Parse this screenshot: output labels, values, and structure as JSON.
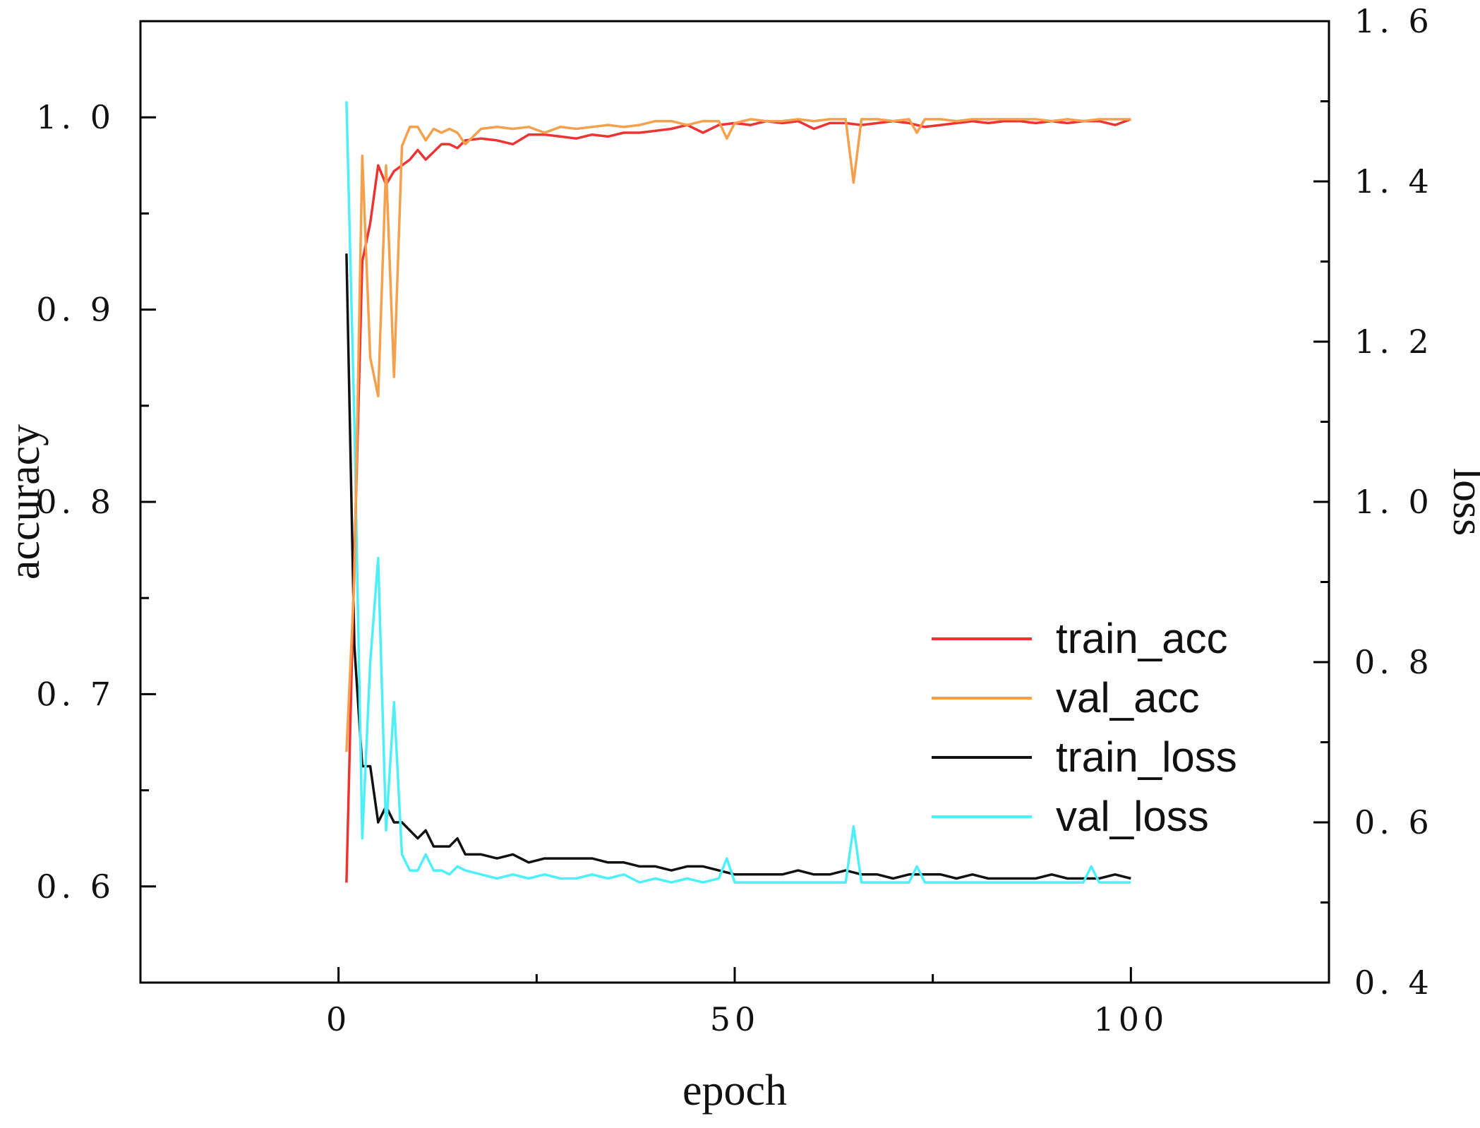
{
  "chart_data": {
    "type": "line",
    "xlabel": "epoch",
    "ylabel_left": "accuracy",
    "ylabel_right": "loss",
    "xlim": [
      -25,
      125
    ],
    "ylim_left": [
      0.55,
      1.05
    ],
    "ylim_right": [
      0.4,
      1.6
    ],
    "x_ticks": [
      0,
      50,
      100
    ],
    "x_tick_labels": [
      "0",
      "50",
      "100"
    ],
    "y_left_ticks": [
      0.6,
      0.7,
      0.8,
      0.9,
      1.0
    ],
    "y_left_tick_labels": [
      "0. 6",
      "0. 7",
      "0. 8",
      "0. 9",
      "1. 0"
    ],
    "y_right_ticks": [
      0.4,
      0.6,
      0.8,
      1.0,
      1.2,
      1.4,
      1.6
    ],
    "y_right_tick_labels": [
      "0. 4",
      "0. 6",
      "0. 8",
      "1. 0",
      "1. 2",
      "1. 4",
      "1. 6"
    ],
    "legend_position": "center-right",
    "series": [
      {
        "name": "train_acc",
        "axis": "left",
        "color": "#ee3333",
        "x": [
          1,
          2,
          3,
          4,
          5,
          6,
          7,
          8,
          9,
          10,
          11,
          12,
          13,
          14,
          15,
          16,
          18,
          20,
          22,
          24,
          26,
          28,
          30,
          32,
          34,
          36,
          38,
          40,
          42,
          44,
          46,
          48,
          50,
          52,
          54,
          56,
          58,
          60,
          62,
          64,
          66,
          68,
          70,
          72,
          74,
          76,
          78,
          80,
          82,
          84,
          86,
          88,
          90,
          92,
          94,
          96,
          98,
          100
        ],
        "values": [
          0.602,
          0.77,
          0.925,
          0.945,
          0.975,
          0.965,
          0.972,
          0.975,
          0.978,
          0.983,
          0.978,
          0.982,
          0.986,
          0.986,
          0.984,
          0.988,
          0.989,
          0.988,
          0.986,
          0.991,
          0.991,
          0.99,
          0.989,
          0.991,
          0.99,
          0.992,
          0.992,
          0.993,
          0.994,
          0.996,
          0.992,
          0.996,
          0.997,
          0.996,
          0.998,
          0.997,
          0.998,
          0.994,
          0.997,
          0.997,
          0.996,
          0.997,
          0.998,
          0.997,
          0.995,
          0.996,
          0.997,
          0.998,
          0.997,
          0.998,
          0.998,
          0.997,
          0.998,
          0.997,
          0.998,
          0.998,
          0.996,
          0.999
        ]
      },
      {
        "name": "val_acc",
        "axis": "left",
        "color": "#f4a04c",
        "x": [
          1,
          2,
          3,
          4,
          5,
          6,
          7,
          8,
          9,
          10,
          11,
          12,
          13,
          14,
          15,
          16,
          18,
          20,
          22,
          24,
          26,
          28,
          30,
          32,
          34,
          36,
          38,
          40,
          42,
          44,
          46,
          48,
          49,
          50,
          52,
          54,
          56,
          58,
          60,
          62,
          64,
          65,
          66,
          68,
          70,
          72,
          73,
          74,
          76,
          78,
          80,
          82,
          84,
          86,
          88,
          90,
          92,
          94,
          96,
          98,
          100
        ],
        "values": [
          0.67,
          0.76,
          0.98,
          0.875,
          0.855,
          0.975,
          0.865,
          0.985,
          0.995,
          0.995,
          0.988,
          0.994,
          0.992,
          0.994,
          0.992,
          0.986,
          0.994,
          0.995,
          0.994,
          0.995,
          0.992,
          0.995,
          0.994,
          0.995,
          0.996,
          0.995,
          0.996,
          0.998,
          0.998,
          0.996,
          0.998,
          0.998,
          0.989,
          0.997,
          0.999,
          0.998,
          0.998,
          0.999,
          0.998,
          0.999,
          0.999,
          0.966,
          0.999,
          0.999,
          0.998,
          0.999,
          0.992,
          0.999,
          0.999,
          0.998,
          0.999,
          0.999,
          0.999,
          0.999,
          0.999,
          0.998,
          0.999,
          0.998,
          0.999,
          0.999,
          0.999
        ]
      },
      {
        "name": "train_loss",
        "axis": "right",
        "color": "#111111",
        "x": [
          1,
          2,
          3,
          4,
          5,
          6,
          7,
          8,
          9,
          10,
          11,
          12,
          13,
          14,
          15,
          16,
          18,
          20,
          22,
          24,
          26,
          28,
          30,
          32,
          34,
          36,
          38,
          40,
          42,
          44,
          46,
          48,
          50,
          52,
          54,
          56,
          58,
          60,
          62,
          64,
          66,
          68,
          70,
          72,
          74,
          76,
          78,
          80,
          82,
          84,
          86,
          88,
          90,
          92,
          94,
          96,
          98,
          100
        ],
        "values": [
          1.31,
          0.82,
          0.67,
          0.67,
          0.6,
          0.62,
          0.6,
          0.6,
          0.59,
          0.58,
          0.59,
          0.57,
          0.57,
          0.57,
          0.58,
          0.56,
          0.56,
          0.555,
          0.56,
          0.55,
          0.555,
          0.555,
          0.555,
          0.555,
          0.55,
          0.55,
          0.545,
          0.545,
          0.54,
          0.545,
          0.545,
          0.54,
          0.535,
          0.535,
          0.535,
          0.535,
          0.54,
          0.535,
          0.535,
          0.54,
          0.535,
          0.535,
          0.53,
          0.535,
          0.535,
          0.535,
          0.53,
          0.535,
          0.53,
          0.53,
          0.53,
          0.53,
          0.535,
          0.53,
          0.53,
          0.53,
          0.535,
          0.53
        ]
      },
      {
        "name": "val_loss",
        "axis": "right",
        "color": "#4ef0f8",
        "x": [
          1,
          2,
          3,
          4,
          5,
          6,
          7,
          8,
          9,
          10,
          11,
          12,
          13,
          14,
          15,
          16,
          18,
          20,
          22,
          24,
          26,
          28,
          30,
          32,
          34,
          36,
          38,
          40,
          42,
          44,
          46,
          48,
          49,
          50,
          52,
          54,
          56,
          58,
          60,
          62,
          64,
          65,
          66,
          68,
          70,
          72,
          73,
          74,
          76,
          78,
          80,
          82,
          84,
          86,
          88,
          90,
          92,
          94,
          95,
          96,
          98,
          100
        ],
        "values": [
          1.5,
          1.1,
          0.58,
          0.8,
          0.93,
          0.59,
          0.75,
          0.56,
          0.54,
          0.54,
          0.56,
          0.54,
          0.54,
          0.535,
          0.545,
          0.54,
          0.535,
          0.53,
          0.535,
          0.53,
          0.535,
          0.53,
          0.53,
          0.535,
          0.53,
          0.535,
          0.525,
          0.53,
          0.525,
          0.53,
          0.525,
          0.53,
          0.555,
          0.525,
          0.525,
          0.525,
          0.525,
          0.525,
          0.525,
          0.525,
          0.525,
          0.595,
          0.525,
          0.525,
          0.525,
          0.525,
          0.545,
          0.525,
          0.525,
          0.525,
          0.525,
          0.525,
          0.525,
          0.525,
          0.525,
          0.525,
          0.525,
          0.525,
          0.545,
          0.525,
          0.525,
          0.525
        ]
      }
    ]
  }
}
